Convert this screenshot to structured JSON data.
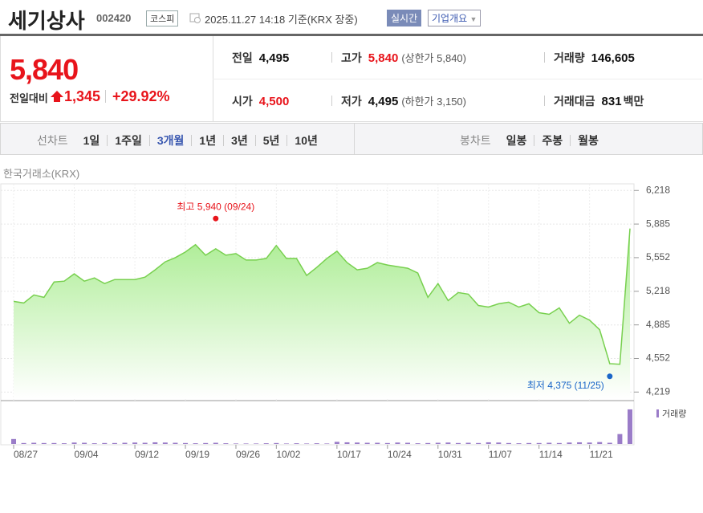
{
  "header": {
    "title": "세기상사",
    "code": "002420",
    "market": "코스피",
    "timestamp": "2025.11.27 14:18",
    "basis": "기준(KRX 장중)",
    "realtime_button": "실시간",
    "company_button": "기업개요"
  },
  "summary": {
    "price": "5,840",
    "change_label": "전일대비",
    "change": "1,345",
    "change_rate": "+29.92%",
    "rows": [
      [
        {
          "label": "전일",
          "value": "4,495"
        },
        {
          "label": "고가",
          "value": "5,840",
          "note": "(상한가 5,840)"
        },
        {
          "label": "거래량",
          "value": "146,605"
        }
      ],
      [
        {
          "label": "시가",
          "value": "4,500"
        },
        {
          "label": "저가",
          "value": "4,495",
          "note": "(하한가 3,150)"
        },
        {
          "label": "거래대금",
          "value": "831",
          "unit": "백만"
        }
      ]
    ]
  },
  "line_tabs": {
    "label": "선차트",
    "items": [
      "1일",
      "1주일",
      "3개월",
      "1년",
      "3년",
      "5년",
      "10년"
    ],
    "active": 2
  },
  "candle_tabs": {
    "label": "봉차트",
    "items": [
      "일봉",
      "주봉",
      "월봉"
    ]
  },
  "chart_data": [
    {
      "type": "line",
      "source": "한국거래소(KRX)",
      "categories": [
        "08/27",
        null,
        null,
        null,
        null,
        null,
        "09/04",
        null,
        null,
        null,
        null,
        null,
        "09/12",
        null,
        null,
        null,
        null,
        "09/19",
        null,
        null,
        null,
        null,
        "09/26",
        null,
        null,
        null,
        "10/02",
        null,
        null,
        null,
        null,
        null,
        "10/17",
        null,
        null,
        null,
        null,
        "10/24",
        null,
        null,
        null,
        null,
        "10/31",
        null,
        null,
        null,
        null,
        "11/07",
        null,
        null,
        null,
        null,
        "11/14",
        null,
        null,
        null,
        null,
        "11/21",
        null,
        null,
        null,
        null
      ],
      "values": [
        5118,
        5102,
        5182,
        5158,
        5311,
        5319,
        5391,
        5319,
        5351,
        5295,
        5335,
        5335,
        5335,
        5359,
        5431,
        5511,
        5552,
        5608,
        5680,
        5576,
        5640,
        5576,
        5592,
        5528,
        5528,
        5544,
        5672,
        5544,
        5544,
        5375,
        5455,
        5544,
        5616,
        5503,
        5431,
        5447,
        5503,
        5479,
        5463,
        5447,
        5399,
        5158,
        5295,
        5126,
        5206,
        5190,
        5078,
        5062,
        5094,
        5110,
        5062,
        5094,
        5006,
        4990,
        5054,
        4901,
        4981,
        4933,
        4837,
        4500,
        4495,
        5840
      ],
      "color": "#78d04f",
      "fill": "#a8ec8f",
      "ylim": [
        4150,
        6260
      ],
      "yticks": [
        {
          "value": 6218,
          "label": "6,218"
        },
        {
          "value": 5885,
          "label": "5,885"
        },
        {
          "value": 5552,
          "label": "5,552"
        },
        {
          "value": 5218,
          "label": "5,218"
        },
        {
          "value": 4885,
          "label": "4,885"
        },
        {
          "value": 4552,
          "label": "4,552"
        },
        {
          "value": 4219,
          "label": "4,219"
        }
      ],
      "grid": true,
      "annotations": [
        {
          "text": "최고 5,940 (09/24)",
          "value": 5940,
          "color": "#e8141b"
        },
        {
          "text": "최저 4,375 (11/25)",
          "value": 4375,
          "color": "#1a66c8"
        }
      ]
    },
    {
      "type": "bar",
      "legend": "거래량",
      "color": "#9a7cc8",
      "values": [
        21000,
        4000,
        5000,
        4000,
        4000,
        3000,
        6000,
        5000,
        3000,
        4000,
        4000,
        5000,
        6000,
        5000,
        7000,
        6000,
        5000,
        4000,
        3000,
        4000,
        5000,
        3000,
        2000,
        2000,
        2000,
        3000,
        4000,
        2000,
        3000,
        2000,
        3000,
        2000,
        9000,
        7000,
        6000,
        5000,
        5000,
        4000,
        6000,
        5000,
        3000,
        4000,
        5000,
        6000,
        4000,
        5000,
        4000,
        7000,
        6000,
        4000,
        3000,
        4000,
        4000,
        5000,
        4000,
        6000,
        7000,
        6000,
        8000,
        5000,
        42000,
        146605
      ],
      "ylim": [
        0,
        160000
      ]
    }
  ]
}
